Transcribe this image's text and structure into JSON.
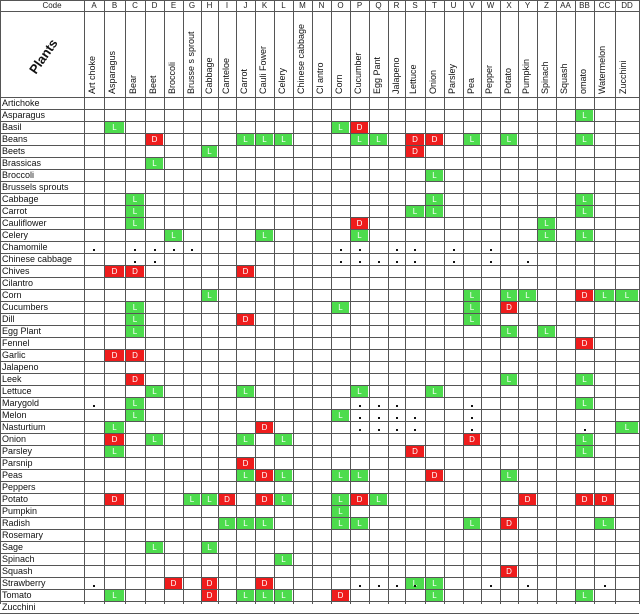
{
  "sheet": {
    "code_header": "Code",
    "corner_label": "Plants",
    "legend": {
      "good": "L",
      "bad": "D"
    },
    "colors": {
      "good": "#4ddc4d",
      "bad": "#ee1c1c",
      "grid": "#555555"
    }
  },
  "columns": [
    {
      "code": "A",
      "name": "Art choke"
    },
    {
      "code": "B",
      "name": "Asparagus"
    },
    {
      "code": "C",
      "name": "Bear"
    },
    {
      "code": "D",
      "name": "Beet"
    },
    {
      "code": "E",
      "name": "Broccoli"
    },
    {
      "code": "G",
      "name": "Brusse s sprout"
    },
    {
      "code": "H",
      "name": "Cabbage"
    },
    {
      "code": "I",
      "name": "Canteloe"
    },
    {
      "code": "J",
      "name": "Carrot"
    },
    {
      "code": "K",
      "name": "Cauli Fower"
    },
    {
      "code": "L",
      "name": "Celery"
    },
    {
      "code": "M",
      "name": "Chinese cabbage"
    },
    {
      "code": "N",
      "name": "Cl antro"
    },
    {
      "code": "O",
      "name": "Corn"
    },
    {
      "code": "P",
      "name": "Cucumber"
    },
    {
      "code": "Q",
      "name": "Egg Pant"
    },
    {
      "code": "R",
      "name": "Jalapeno"
    },
    {
      "code": "S",
      "name": "Lettuce"
    },
    {
      "code": "T",
      "name": "Onion"
    },
    {
      "code": "U",
      "name": "Parsley"
    },
    {
      "code": "V",
      "name": "Pea"
    },
    {
      "code": "W",
      "name": "Pepper"
    },
    {
      "code": "X",
      "name": "Potato"
    },
    {
      "code": "Y",
      "name": "Pumpkin"
    },
    {
      "code": "Z",
      "name": "Spinach"
    },
    {
      "code": "AA",
      "name": "Squash"
    },
    {
      "code": "BB",
      "name": "omato"
    },
    {
      "code": "CC",
      "name": "Watermelon"
    },
    {
      "code": "DD",
      "name": "Zucchini"
    }
  ],
  "rows": [
    {
      "name": "Artichoke",
      "marks": []
    },
    {
      "name": "Asparagus",
      "marks": [
        {
          "col": "BB",
          "v": "L"
        }
      ]
    },
    {
      "name": "Basil",
      "marks": [
        {
          "col": "B",
          "v": "L"
        },
        {
          "col": "O",
          "v": "L"
        },
        {
          "col": "P",
          "v": "D"
        }
      ]
    },
    {
      "name": "Beans",
      "marks": [
        {
          "col": "D",
          "v": "D"
        },
        {
          "col": "J",
          "v": "L"
        },
        {
          "col": "K",
          "v": "L"
        },
        {
          "col": "L",
          "v": "L"
        },
        {
          "col": "P",
          "v": "L"
        },
        {
          "col": "Q",
          "v": "L"
        },
        {
          "col": "S",
          "v": "D"
        },
        {
          "col": "T",
          "v": "D"
        },
        {
          "col": "V",
          "v": "L"
        },
        {
          "col": "X",
          "v": "L"
        },
        {
          "col": "BB",
          "v": "L"
        }
      ]
    },
    {
      "name": "Beets",
      "marks": [
        {
          "col": "H",
          "v": "L"
        },
        {
          "col": "S",
          "v": "D"
        }
      ]
    },
    {
      "name": "Brassicas",
      "marks": [
        {
          "col": "D",
          "v": "L"
        }
      ]
    },
    {
      "name": "Broccoli",
      "marks": [
        {
          "col": "T",
          "v": "L"
        }
      ]
    },
    {
      "name": "Brussels sprouts",
      "marks": []
    },
    {
      "name": "Cabbage",
      "marks": [
        {
          "col": "C",
          "v": "L"
        },
        {
          "col": "T",
          "v": "L"
        },
        {
          "col": "BB",
          "v": "L"
        }
      ]
    },
    {
      "name": "Carrot",
      "marks": [
        {
          "col": "C",
          "v": "L"
        },
        {
          "col": "S",
          "v": "L"
        },
        {
          "col": "T",
          "v": "L"
        },
        {
          "col": "BB",
          "v": "L"
        }
      ]
    },
    {
      "name": "Cauliflower",
      "marks": [
        {
          "col": "C",
          "v": "L"
        },
        {
          "col": "P",
          "v": "D"
        },
        {
          "col": "Z",
          "v": "L"
        }
      ]
    },
    {
      "name": "Celery",
      "marks": [
        {
          "col": "E",
          "v": "L"
        },
        {
          "col": "K",
          "v": "L"
        },
        {
          "col": "P",
          "v": "L"
        },
        {
          "col": "Z",
          "v": "L"
        },
        {
          "col": "BB",
          "v": "L"
        }
      ]
    },
    {
      "name": "Chamomile",
      "marks": []
    },
    {
      "name": "Chinese cabbage",
      "marks": []
    },
    {
      "name": "Chives",
      "marks": [
        {
          "col": "B",
          "v": "D"
        },
        {
          "col": "C",
          "v": "D"
        },
        {
          "col": "J",
          "v": "D"
        }
      ]
    },
    {
      "name": "Cilantro",
      "marks": []
    },
    {
      "name": "Corn",
      "marks": [
        {
          "col": "H",
          "v": "L"
        },
        {
          "col": "V",
          "v": "L"
        },
        {
          "col": "X",
          "v": "L"
        },
        {
          "col": "Y",
          "v": "L"
        },
        {
          "col": "BB",
          "v": "D"
        },
        {
          "col": "CC",
          "v": "L"
        },
        {
          "col": "DD",
          "v": "L"
        }
      ]
    },
    {
      "name": "Cucumbers",
      "marks": [
        {
          "col": "C",
          "v": "L"
        },
        {
          "col": "O",
          "v": "L"
        },
        {
          "col": "V",
          "v": "L"
        },
        {
          "col": "X",
          "v": "D"
        }
      ]
    },
    {
      "name": "Dill",
      "marks": [
        {
          "col": "C",
          "v": "L"
        },
        {
          "col": "J",
          "v": "D"
        },
        {
          "col": "V",
          "v": "L"
        }
      ]
    },
    {
      "name": "Egg Plant",
      "marks": [
        {
          "col": "C",
          "v": "L"
        },
        {
          "col": "X",
          "v": "L"
        },
        {
          "col": "Z",
          "v": "L"
        }
      ]
    },
    {
      "name": "Fennel",
      "marks": [
        {
          "col": "BB",
          "v": "D"
        }
      ]
    },
    {
      "name": "Garlic",
      "marks": [
        {
          "col": "B",
          "v": "D"
        },
        {
          "col": "C",
          "v": "D"
        }
      ]
    },
    {
      "name": "Jalapeno",
      "marks": []
    },
    {
      "name": "Leek",
      "marks": [
        {
          "col": "C",
          "v": "D"
        },
        {
          "col": "X",
          "v": "L"
        },
        {
          "col": "BB",
          "v": "L"
        }
      ]
    },
    {
      "name": "Lettuce",
      "marks": [
        {
          "col": "D",
          "v": "L"
        },
        {
          "col": "J",
          "v": "L"
        },
        {
          "col": "P",
          "v": "L"
        },
        {
          "col": "T",
          "v": "L"
        }
      ]
    },
    {
      "name": "Marygold",
      "marks": [
        {
          "col": "C",
          "v": "L"
        },
        {
          "col": "BB",
          "v": "L"
        }
      ]
    },
    {
      "name": "Melon",
      "marks": [
        {
          "col": "C",
          "v": "L"
        },
        {
          "col": "O",
          "v": "L"
        }
      ]
    },
    {
      "name": "Nasturtium",
      "marks": [
        {
          "col": "B",
          "v": "L"
        },
        {
          "col": "K",
          "v": "D"
        },
        {
          "col": "DD",
          "v": "L"
        }
      ]
    },
    {
      "name": "Onion",
      "marks": [
        {
          "col": "B",
          "v": "D"
        },
        {
          "col": "D",
          "v": "L"
        },
        {
          "col": "J",
          "v": "L"
        },
        {
          "col": "L",
          "v": "L"
        },
        {
          "col": "V",
          "v": "D"
        },
        {
          "col": "BB",
          "v": "L"
        }
      ]
    },
    {
      "name": "Parsley",
      "marks": [
        {
          "col": "B",
          "v": "L"
        },
        {
          "col": "S",
          "v": "D"
        },
        {
          "col": "BB",
          "v": "L"
        }
      ]
    },
    {
      "name": "Parsnip",
      "marks": [
        {
          "col": "J",
          "v": "D"
        }
      ]
    },
    {
      "name": "Peas",
      "marks": [
        {
          "col": "J",
          "v": "L"
        },
        {
          "col": "K",
          "v": "D"
        },
        {
          "col": "L",
          "v": "L"
        },
        {
          "col": "O",
          "v": "L"
        },
        {
          "col": "P",
          "v": "L"
        },
        {
          "col": "T",
          "v": "D"
        },
        {
          "col": "X",
          "v": "L"
        }
      ]
    },
    {
      "name": "Peppers",
      "marks": []
    },
    {
      "name": "Potato",
      "marks": [
        {
          "col": "B",
          "v": "D"
        },
        {
          "col": "G",
          "v": "L"
        },
        {
          "col": "H",
          "v": "L"
        },
        {
          "col": "I",
          "v": "D"
        },
        {
          "col": "K",
          "v": "D"
        },
        {
          "col": "L",
          "v": "L"
        },
        {
          "col": "O",
          "v": "L"
        },
        {
          "col": "P",
          "v": "D"
        },
        {
          "col": "Q",
          "v": "L"
        },
        {
          "col": "Y",
          "v": "D"
        },
        {
          "col": "BB",
          "v": "D"
        },
        {
          "col": "CC",
          "v": "D"
        }
      ]
    },
    {
      "name": "Pumpkin",
      "marks": [
        {
          "col": "O",
          "v": "L"
        }
      ]
    },
    {
      "name": "Radish",
      "marks": [
        {
          "col": "I",
          "v": "L"
        },
        {
          "col": "J",
          "v": "L"
        },
        {
          "col": "K",
          "v": "L"
        },
        {
          "col": "O",
          "v": "L"
        },
        {
          "col": "P",
          "v": "L"
        },
        {
          "col": "V",
          "v": "L"
        },
        {
          "col": "X",
          "v": "D"
        },
        {
          "col": "CC",
          "v": "L"
        }
      ]
    },
    {
      "name": "Rosemary",
      "marks": []
    },
    {
      "name": "Sage",
      "marks": [
        {
          "col": "D",
          "v": "L"
        },
        {
          "col": "H",
          "v": "L"
        }
      ]
    },
    {
      "name": "Spinach",
      "marks": [
        {
          "col": "L",
          "v": "L"
        }
      ]
    },
    {
      "name": "Squash",
      "marks": [
        {
          "col": "X",
          "v": "D"
        }
      ]
    },
    {
      "name": "Strawberry",
      "marks": [
        {
          "col": "E",
          "v": "D"
        },
        {
          "col": "H",
          "v": "D"
        },
        {
          "col": "K",
          "v": "D"
        },
        {
          "col": "S",
          "v": "L"
        },
        {
          "col": "T",
          "v": "L"
        }
      ]
    },
    {
      "name": "Tomato",
      "marks": [
        {
          "col": "B",
          "v": "L"
        },
        {
          "col": "H",
          "v": "D"
        },
        {
          "col": "J",
          "v": "L"
        },
        {
          "col": "K",
          "v": "L"
        },
        {
          "col": "L",
          "v": "L"
        },
        {
          "col": "O",
          "v": "D"
        },
        {
          "col": "T",
          "v": "L"
        },
        {
          "col": "BB",
          "v": "L"
        }
      ]
    },
    {
      "name": "Zucchini",
      "marks": []
    }
  ]
}
